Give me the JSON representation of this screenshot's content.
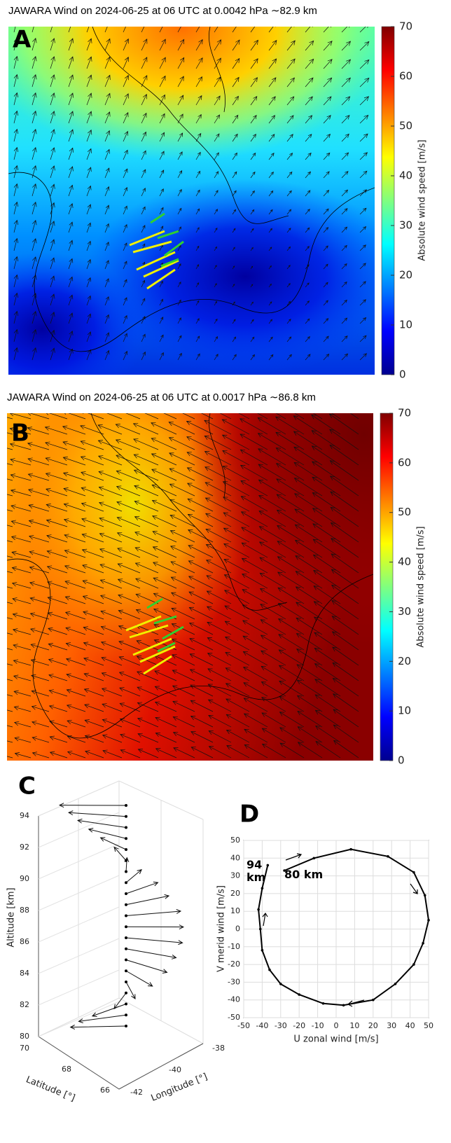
{
  "chart_data": [
    {
      "type": "map",
      "panel_label": "A",
      "title": "JAWARA Wind on 2024-06-25 at 06 UTC at 0.0042 hPa ∼82.9 km",
      "colorbar_label": "Absolute wind speed [m/s]",
      "clim": [
        0,
        70
      ],
      "cticks": [
        0,
        10,
        20,
        30,
        40,
        50,
        60,
        70
      ]
    },
    {
      "type": "map",
      "panel_label": "B",
      "title": "JAWARA Wind on 2024-06-25 at 06 UTC at 0.0017 hPa ∼86.8 km",
      "colorbar_label": "Absolute wind speed [m/s]",
      "clim": [
        0,
        70
      ],
      "cticks": [
        0,
        10,
        20,
        30,
        40,
        50,
        60,
        70
      ]
    },
    {
      "type": "quiver3d",
      "panel_label": "C",
      "zlabel": "Altitude [km]",
      "xlabel": "Latitude [°]",
      "ylabel": "Longitude [°]",
      "zlim": [
        80,
        94
      ],
      "zticks": [
        80,
        82,
        84,
        86,
        88,
        90,
        92,
        94
      ],
      "xticks": [
        70,
        68,
        66
      ],
      "yticks": [
        -42,
        -40,
        -38
      ],
      "altitude": [
        80,
        80.7,
        81.4,
        82.1,
        82.8,
        83.5,
        84.2,
        84.9,
        85.6,
        86.3,
        87,
        87.7,
        88.4,
        89.1,
        89.8,
        90.5,
        91.2,
        91.9,
        92.6,
        93.3,
        94
      ]
    },
    {
      "type": "line",
      "panel_label": "D",
      "xlabel": "U zonal wind [m/s]",
      "ylabel": "V merid wind [m/s]",
      "xlim": [
        -50,
        50
      ],
      "ylim": [
        -50,
        50
      ],
      "xticks": [
        -50,
        -40,
        -30,
        -20,
        -10,
        0,
        10,
        20,
        30,
        40,
        50
      ],
      "yticks": [
        -50,
        -40,
        -30,
        -20,
        -10,
        0,
        10,
        20,
        30,
        40,
        50
      ],
      "x": [
        -28,
        -12,
        8,
        28,
        42,
        48,
        50,
        47,
        42,
        32,
        20,
        4,
        -7,
        -20,
        -30,
        -36,
        -40,
        -41,
        -42,
        -40,
        -37
      ],
      "y": [
        33,
        40,
        45,
        41,
        32,
        19,
        5,
        -8,
        -20,
        -31,
        -40,
        -43,
        -42,
        -37,
        -31,
        -23,
        -12,
        0,
        11,
        23,
        36
      ],
      "color": "#000000",
      "annotations": [
        "94 km",
        "80 km"
      ]
    }
  ]
}
